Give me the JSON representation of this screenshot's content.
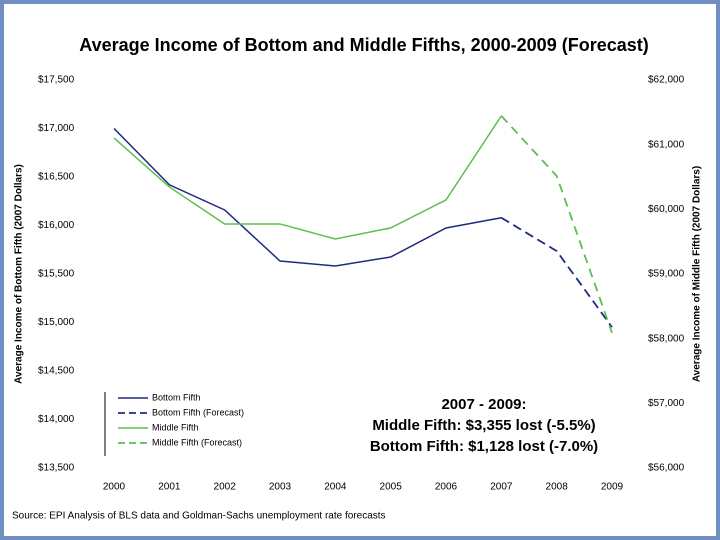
{
  "chart_data": {
    "type": "line",
    "title": "Average Income of Bottom and Middle Fifths, 2000-2009 (Forecast)",
    "x_label": null,
    "y_label": "Average Income of Bottom Fifth (2007 Dollars)",
    "y2_label": "Average Income of Middle Fifth (2007 Dollars)",
    "categories": [
      "2000",
      "2001",
      "2002",
      "2003",
      "2004",
      "2005",
      "2006",
      "2007",
      "2008",
      "2009"
    ],
    "ylim": [
      13500,
      17500
    ],
    "yticks": [
      {
        "value": 13500,
        "label": "$13,500"
      },
      {
        "value": 14000,
        "label": "$14,000"
      },
      {
        "value": 14500,
        "label": "$14,500"
      },
      {
        "value": 15000,
        "label": "$15,000"
      },
      {
        "value": 15500,
        "label": "$15,500"
      },
      {
        "value": 16000,
        "label": "$16,000"
      },
      {
        "value": 16500,
        "label": "$16,500"
      },
      {
        "value": 17000,
        "label": "$17,000"
      },
      {
        "value": 17500,
        "label": "$17,500"
      }
    ],
    "y2lim": [
      56000,
      62000
    ],
    "y2ticks": [
      {
        "value": 56000,
        "label": "$56,000"
      },
      {
        "value": 57000,
        "label": "$57,000"
      },
      {
        "value": 58000,
        "label": "$58,000"
      },
      {
        "value": 59000,
        "label": "$59,000"
      },
      {
        "value": 60000,
        "label": "$60,000"
      },
      {
        "value": 61000,
        "label": "$61,000"
      },
      {
        "value": 62000,
        "label": "$62,000"
      }
    ],
    "grid": false,
    "series": [
      {
        "name": "Bottom Fifth",
        "color": "#1f2a80",
        "dashed": false,
        "values": [
          17000,
          16420,
          16160,
          15634,
          15583,
          15675,
          15974,
          16080,
          null,
          null
        ]
      },
      {
        "name": "Bottom Fifth (Forecast)",
        "color": "#1f2a80",
        "dashed": true,
        "values": [
          null,
          null,
          null,
          null,
          null,
          null,
          null,
          16080,
          15737,
          14952
        ]
      },
      {
        "name": "Middle Fifth",
        "color": "#5cbf4f",
        "dashed": false,
        "axis": "y2",
        "values": [
          61104,
          60346,
          59774,
          59774,
          59542,
          59713,
          60145,
          61445,
          null,
          null
        ]
      },
      {
        "name": "Middle Fifth (Forecast)",
        "color": "#5cbf4f",
        "dashed": true,
        "axis": "y2",
        "values": [
          null,
          null,
          null,
          null,
          null,
          null,
          null,
          61445,
          60516,
          58090
        ]
      }
    ],
    "annotation": [
      "2007 - 2009:",
      "Middle Fifth: $3,355 lost (-5.5%)",
      "Bottom Fifth: $1,128 lost (-7.0%)"
    ],
    "source": "Source: EPI Analysis of BLS data and Goldman-Sachs unemployment rate forecasts"
  }
}
